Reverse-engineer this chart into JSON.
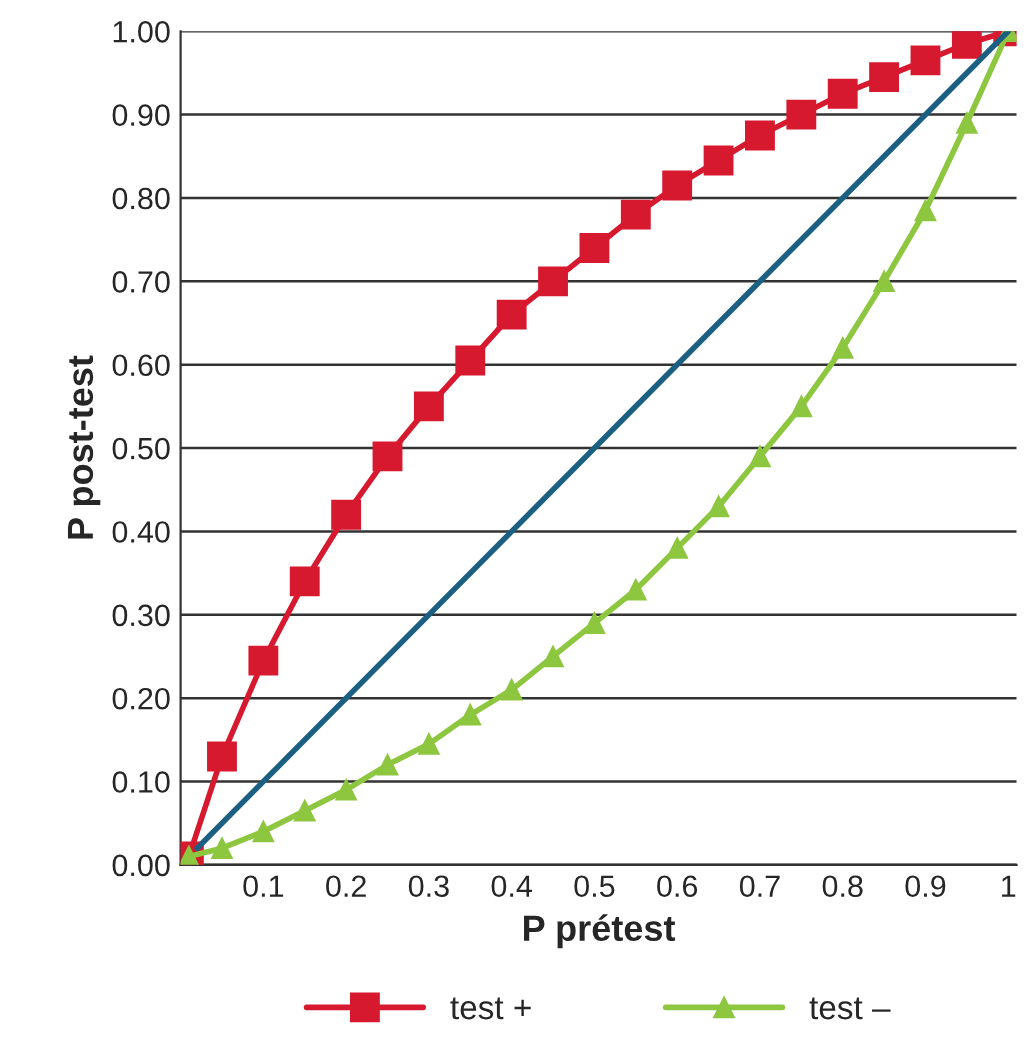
{
  "chart_data": {
    "type": "line",
    "xlabel": "P prétest",
    "ylabel": "P post-test",
    "x": [
      0.01,
      0.05,
      0.1,
      0.15,
      0.2,
      0.25,
      0.3,
      0.35,
      0.4,
      0.45,
      0.5,
      0.55,
      0.6,
      0.65,
      0.7,
      0.75,
      0.8,
      0.85,
      0.9,
      0.95,
      1.0
    ],
    "series": [
      {
        "name": "test +",
        "color": "#d7192f",
        "marker": "square",
        "values": [
          0.01,
          0.13,
          0.245,
          0.34,
          0.42,
          0.49,
          0.55,
          0.605,
          0.66,
          0.7,
          0.74,
          0.78,
          0.815,
          0.845,
          0.875,
          0.9,
          0.925,
          0.945,
          0.965,
          0.985,
          1.0
        ]
      },
      {
        "name": "test –",
        "color": "#8dc63f",
        "marker": "triangle",
        "values": [
          0.01,
          0.02,
          0.04,
          0.065,
          0.09,
          0.12,
          0.145,
          0.18,
          0.21,
          0.25,
          0.29,
          0.33,
          0.38,
          0.43,
          0.49,
          0.55,
          0.62,
          0.7,
          0.785,
          0.89,
          1.0
        ]
      },
      {
        "color": "#1b5f82",
        "marker": "none",
        "x": [
          0.02,
          1.0
        ],
        "values": [
          0.02,
          1.0
        ]
      }
    ],
    "xlim": [
      0,
      1.01
    ],
    "xticks": [
      {
        "value": 0.1,
        "label": "0.1"
      },
      {
        "value": 0.2,
        "label": "0.2"
      },
      {
        "value": 0.3,
        "label": "0.3"
      },
      {
        "value": 0.4,
        "label": "0.4"
      },
      {
        "value": 0.5,
        "label": "0.5"
      },
      {
        "value": 0.6,
        "label": "0.6"
      },
      {
        "value": 0.7,
        "label": "0.7"
      },
      {
        "value": 0.8,
        "label": "0.8"
      },
      {
        "value": 0.9,
        "label": "0.9"
      },
      {
        "value": 1,
        "label": "1"
      }
    ],
    "ylim": [
      0,
      1.0
    ],
    "yticks": [
      {
        "value": 0,
        "label": "0.00"
      },
      {
        "value": 0.1,
        "label": "0.10"
      },
      {
        "value": 0.2,
        "label": "0.20"
      },
      {
        "value": 0.3,
        "label": "0.30"
      },
      {
        "value": 0.4,
        "label": "0.40"
      },
      {
        "value": 0.5,
        "label": "0.50"
      },
      {
        "value": 0.6,
        "label": "0.60"
      },
      {
        "value": 0.7,
        "label": "0.70"
      },
      {
        "value": 0.8,
        "label": "0.80"
      },
      {
        "value": 0.9,
        "label": "0.90"
      },
      {
        "value": 1.0,
        "label": "1.00"
      }
    ],
    "grid": "y",
    "legend": "bottom"
  }
}
